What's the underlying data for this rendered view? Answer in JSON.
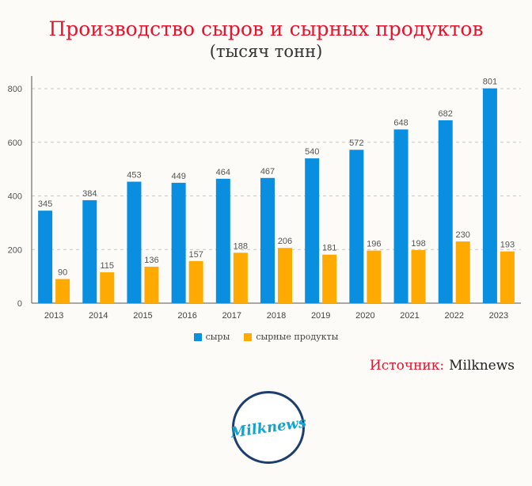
{
  "title": "Производство сыров и сырных продуктов",
  "subtitle": "(тысяч тонн)",
  "source": {
    "label": "Источник:",
    "name": "Milknews"
  },
  "logo": {
    "text": "Milknews"
  },
  "colors": {
    "cheese": "#0a8fe0",
    "cheese_products": "#ffaa00",
    "title": "#e8132d"
  },
  "chart_data": {
    "type": "bar",
    "categories": [
      "2013",
      "2014",
      "2015",
      "2016",
      "2017",
      "2018",
      "2019",
      "2020",
      "2021",
      "2022",
      "2023"
    ],
    "series": [
      {
        "name": "сыры",
        "color": "#0a8fe0",
        "values": [
          345,
          384,
          453,
          449,
          464,
          467,
          540,
          572,
          648,
          682,
          801
        ]
      },
      {
        "name": "сырные продукты",
        "color": "#ffaa00",
        "values": [
          90,
          115,
          136,
          157,
          188,
          206,
          181,
          196,
          198,
          230,
          193
        ]
      }
    ],
    "yticks": [
      0,
      200,
      400,
      600,
      800
    ],
    "ylim": [
      0,
      800
    ],
    "grid": true,
    "legend": "bottom-center"
  }
}
